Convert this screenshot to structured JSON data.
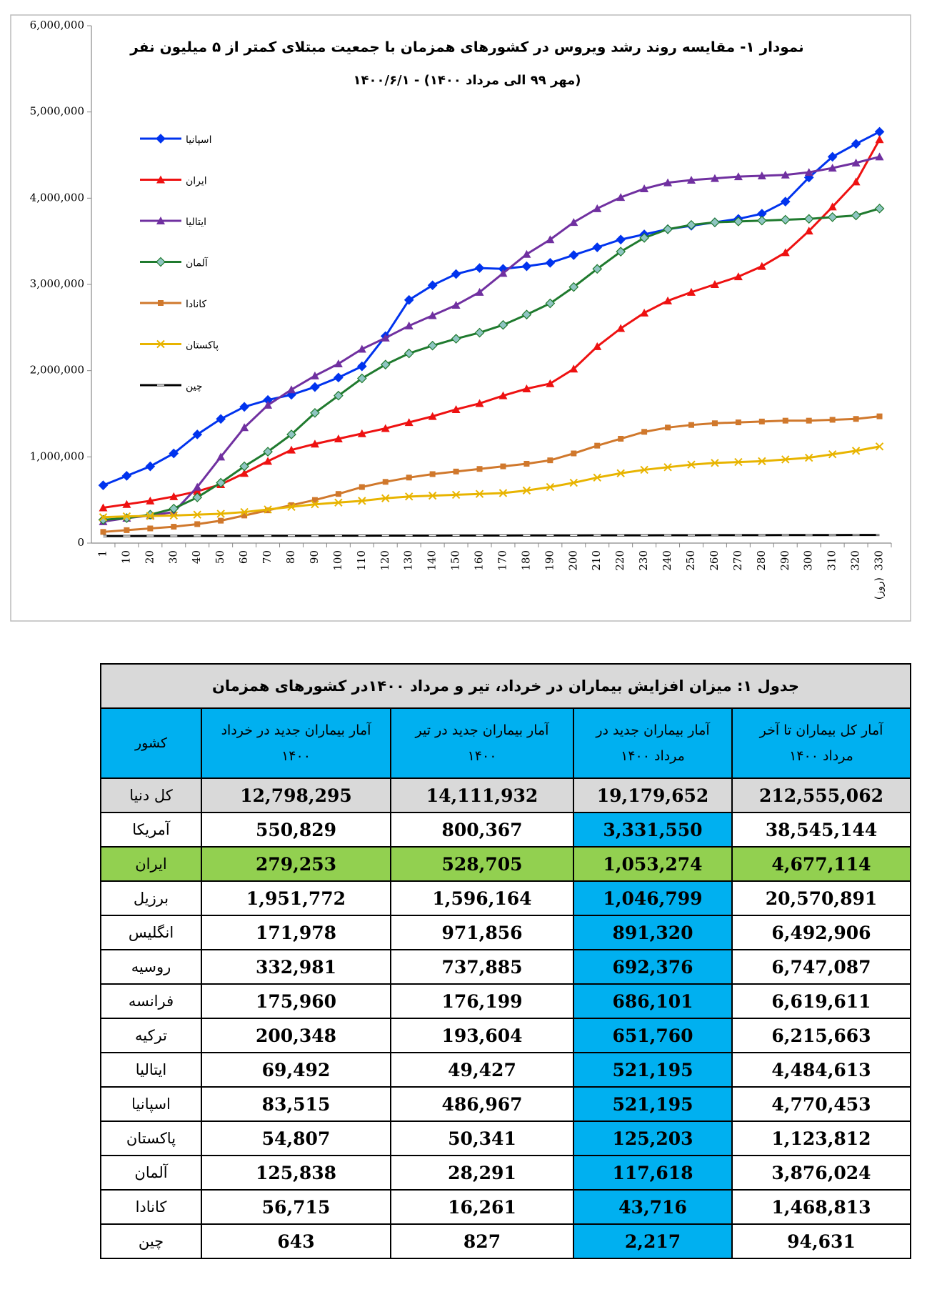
{
  "chart_data": {
    "type": "line",
    "title": "نمودار ۱- مقایسه روند رشد ویروس در کشورهای همزمان با جمعیت مبتلای کمتر از ۵ میلیون  نفر",
    "subtitle": "(مهر ۹۹ الی مرداد ۱۴۰۰) - ۱۴۰۰/۶/۱",
    "x_label": "(روز)",
    "categories": [
      "1",
      "10",
      "20",
      "30",
      "40",
      "50",
      "60",
      "70",
      "80",
      "90",
      "100",
      "110",
      "120",
      "130",
      "140",
      "150",
      "160",
      "170",
      "180",
      "190",
      "200",
      "210",
      "220",
      "230",
      "240",
      "250",
      "260",
      "270",
      "280",
      "290",
      "300",
      "310",
      "320",
      "330"
    ],
    "ylim": [
      0,
      6000000
    ],
    "yticks": [
      0,
      {
        "value": 1000000,
        "label": "1,000,000"
      },
      {
        "value": 2000000,
        "label": "2,000,000"
      },
      {
        "value": 3000000,
        "label": "3,000,000"
      },
      {
        "value": 4000000,
        "label": "4,000,000"
      },
      {
        "value": 5000000,
        "label": "5,000,000"
      },
      {
        "value": 6000000,
        "label": "6,000,000"
      }
    ],
    "grid": false,
    "series": [
      {
        "name": "اسپانیا",
        "color": "#0033ee",
        "marker": "diamond",
        "values": [
          670000,
          780000,
          890000,
          1040000,
          1260000,
          1440000,
          1580000,
          1660000,
          1720000,
          1810000,
          1920000,
          2050000,
          2400000,
          2820000,
          2990000,
          3120000,
          3190000,
          3180000,
          3210000,
          3250000,
          3340000,
          3430000,
          3520000,
          3580000,
          3640000,
          3680000,
          3720000,
          3760000,
          3820000,
          3960000,
          4240000,
          4480000,
          4630000,
          4770000
        ]
      },
      {
        "name": "ایران",
        "color": "#ee1111",
        "marker": "triangle",
        "values": [
          410000,
          450000,
          490000,
          540000,
          600000,
          680000,
          810000,
          950000,
          1080000,
          1150000,
          1210000,
          1270000,
          1330000,
          1400000,
          1470000,
          1550000,
          1620000,
          1710000,
          1790000,
          1850000,
          2020000,
          2280000,
          2490000,
          2670000,
          2810000,
          2910000,
          3000000,
          3090000,
          3210000,
          3370000,
          3620000,
          3900000,
          4190000,
          4680000
        ]
      },
      {
        "name": "ایتالیا",
        "color": "#7030a0",
        "marker": "triangle",
        "values": [
          250000,
          290000,
          320000,
          360000,
          650000,
          1000000,
          1340000,
          1600000,
          1780000,
          1940000,
          2080000,
          2250000,
          2380000,
          2520000,
          2640000,
          2760000,
          2910000,
          3130000,
          3350000,
          3520000,
          3720000,
          3880000,
          4010000,
          4110000,
          4180000,
          4210000,
          4230000,
          4250000,
          4260000,
          4270000,
          4300000,
          4350000,
          4410000,
          4480000
        ]
      },
      {
        "name": "آلمان",
        "color": "#1f7a2e",
        "marker": "diamond-light",
        "values": [
          270000,
          290000,
          330000,
          400000,
          530000,
          700000,
          890000,
          1060000,
          1260000,
          1510000,
          1710000,
          1910000,
          2070000,
          2200000,
          2290000,
          2370000,
          2440000,
          2530000,
          2650000,
          2780000,
          2970000,
          3180000,
          3380000,
          3540000,
          3640000,
          3690000,
          3720000,
          3730000,
          3740000,
          3750000,
          3760000,
          3780000,
          3800000,
          3880000
        ]
      },
      {
        "name": "کانادا",
        "color": "#d0782c",
        "marker": "square",
        "values": [
          130000,
          150000,
          170000,
          190000,
          220000,
          260000,
          320000,
          380000,
          440000,
          500000,
          570000,
          650000,
          710000,
          760000,
          800000,
          830000,
          860000,
          890000,
          920000,
          960000,
          1040000,
          1130000,
          1210000,
          1290000,
          1340000,
          1370000,
          1390000,
          1400000,
          1410000,
          1420000,
          1420000,
          1430000,
          1440000,
          1470000
        ]
      },
      {
        "name": "پاکستان",
        "color": "#e8b400",
        "marker": "x",
        "values": [
          300000,
          310000,
          315000,
          320000,
          330000,
          340000,
          360000,
          390000,
          420000,
          450000,
          470000,
          490000,
          520000,
          540000,
          550000,
          560000,
          570000,
          580000,
          610000,
          650000,
          700000,
          760000,
          810000,
          850000,
          880000,
          910000,
          930000,
          940000,
          950000,
          970000,
          990000,
          1030000,
          1070000,
          1120000
        ]
      },
      {
        "name": "چین",
        "color": "#000000",
        "marker": "dash",
        "values": [
          82000,
          82000,
          83000,
          83000,
          84000,
          84000,
          84000,
          85000,
          85000,
          85000,
          86000,
          86000,
          87000,
          87000,
          87000,
          88000,
          88000,
          88000,
          89000,
          89000,
          89000,
          90000,
          90000,
          90000,
          91000,
          91000,
          92000,
          92000,
          92000,
          93000,
          93000,
          93000,
          94000,
          94000
        ]
      }
    ]
  },
  "table": {
    "title": "جدول ۱: میزان افزایش بیماران در خرداد، تیر و مرداد ۱۴۰۰در کشورهای همزمان",
    "header": [
      "کشور",
      "آمار بیماران جدید در خرداد ۱۴۰۰",
      "آمار بیماران جدید در تیر ۱۴۰۰",
      "آمار بیماران جدید در مرداد ۱۴۰۰",
      "آمار کل بیماران تا آخر مرداد ۱۴۰۰"
    ],
    "rows": [
      [
        "کل دنیا",
        "12,798,295",
        "14,111,932",
        "19,179,652",
        "212,555,062"
      ],
      [
        "آمریکا",
        "550,829",
        "800,367",
        "3,331,550",
        "38,545,144"
      ],
      [
        "ایران",
        "279,253",
        "528,705",
        "1,053,274",
        "4,677,114"
      ],
      [
        "برزیل",
        "1,951,772",
        "1,596,164",
        "1,046,799",
        "20,570,891"
      ],
      [
        "انگلیس",
        "171,978",
        "971,856",
        "891,320",
        "6,492,906"
      ],
      [
        "روسیه",
        "332,981",
        "737,885",
        "692,376",
        "6,747,087"
      ],
      [
        "فرانسه",
        "175,960",
        "176,199",
        "686,101",
        "6,619,611"
      ],
      [
        "ترکیه",
        "200,348",
        "193,604",
        "651,760",
        "6,215,663"
      ],
      [
        "ایتالیا",
        "69,492",
        "49,427",
        "521,195",
        "4,484,613"
      ],
      [
        "اسپانیا",
        "83,515",
        "486,967",
        "521,195",
        "4,770,453"
      ],
      [
        "پاکستان",
        "54,807",
        "50,341",
        "125,203",
        "1,123,812"
      ],
      [
        "آلمان",
        "125,838",
        "28,291",
        "117,618",
        "3,876,024"
      ],
      [
        "کانادا",
        "56,715",
        "16,261",
        "43,716",
        "1,468,813"
      ],
      [
        "چین",
        "643",
        "827",
        "2,217",
        "94,631"
      ]
    ]
  }
}
